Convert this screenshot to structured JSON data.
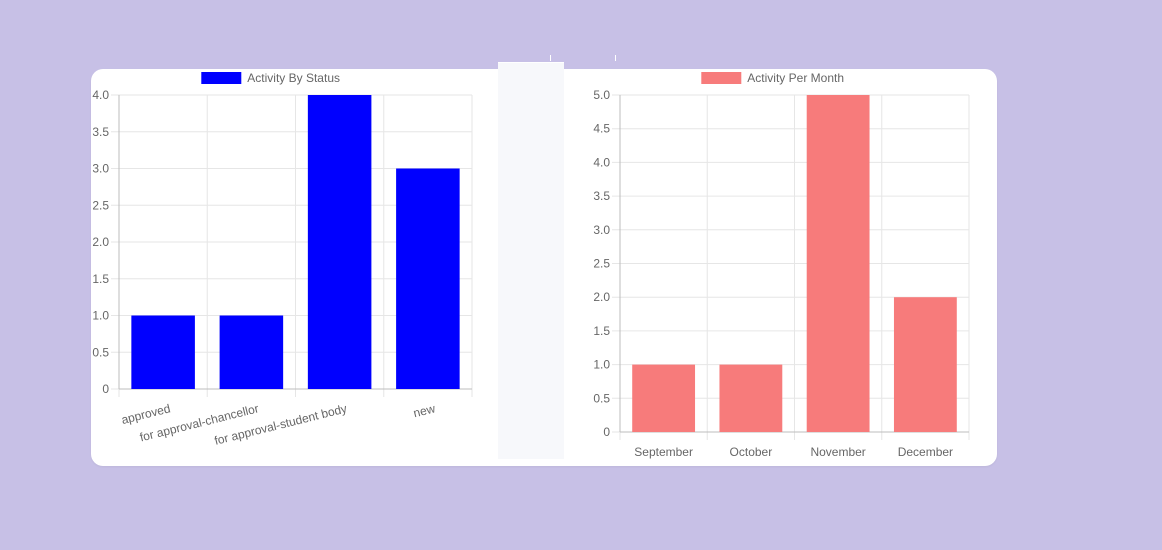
{
  "chart_data": [
    {
      "type": "bar",
      "legend": "Activity By Status",
      "color": "#0000ff",
      "categories": [
        "approved",
        "for approval-chancellor",
        "for approval-student body",
        "new"
      ],
      "values": [
        1,
        1,
        4,
        3
      ],
      "ylim": [
        0,
        4.0
      ],
      "yticks": [
        "4.0",
        "3.5",
        "3.0",
        "2.5",
        "2.0",
        "1.5",
        "1.0",
        "0.5",
        "0"
      ],
      "grid": true,
      "legend_position": "top"
    },
    {
      "type": "bar",
      "legend": "Activity Per Month",
      "color": "#f77b7b",
      "categories": [
        "September",
        "October",
        "November",
        "December"
      ],
      "values": [
        1,
        1,
        5,
        2
      ],
      "ylim": [
        0,
        5.0
      ],
      "yticks": [
        "5.0",
        "4.5",
        "4.0",
        "3.5",
        "3.0",
        "2.5",
        "2.0",
        "1.5",
        "1.0",
        "0.5",
        "0"
      ],
      "grid": true,
      "legend_position": "top"
    }
  ]
}
